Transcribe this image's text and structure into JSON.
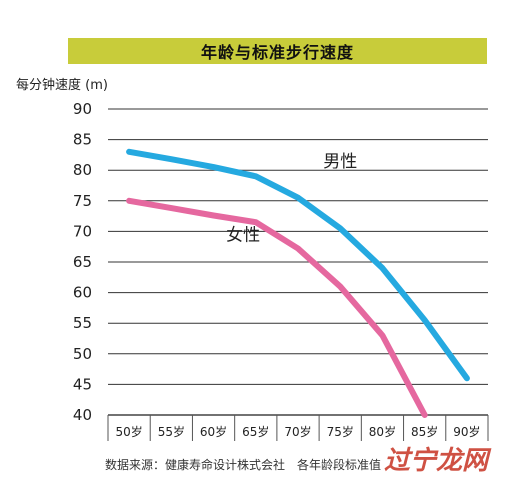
{
  "chart_data": {
    "type": "line",
    "title": "年龄与标准步行速度",
    "ylabel": "每分钟速度 (m)",
    "xlabel": "",
    "categories": [
      "50岁",
      "55岁",
      "60岁",
      "65岁",
      "70岁",
      "75岁",
      "80岁",
      "85岁",
      "90岁"
    ],
    "ylim": [
      40,
      90
    ],
    "yticks": [
      90,
      85,
      80,
      75,
      70,
      65,
      60,
      55,
      50,
      45,
      40
    ],
    "grid": true,
    "series": [
      {
        "name": "男性",
        "color": "#25a9e0",
        "values": [
          83,
          81.8,
          80.5,
          79,
          75.5,
          70.5,
          64,
          55.5,
          46
        ]
      },
      {
        "name": "女性",
        "color": "#e5689f",
        "values": [
          75,
          73.8,
          72.6,
          71.5,
          67.2,
          61,
          53,
          40,
          null
        ]
      }
    ],
    "source": "数据来源：健康寿命设计株式会社　各年龄段标准值",
    "watermark": "过宁龙网"
  }
}
